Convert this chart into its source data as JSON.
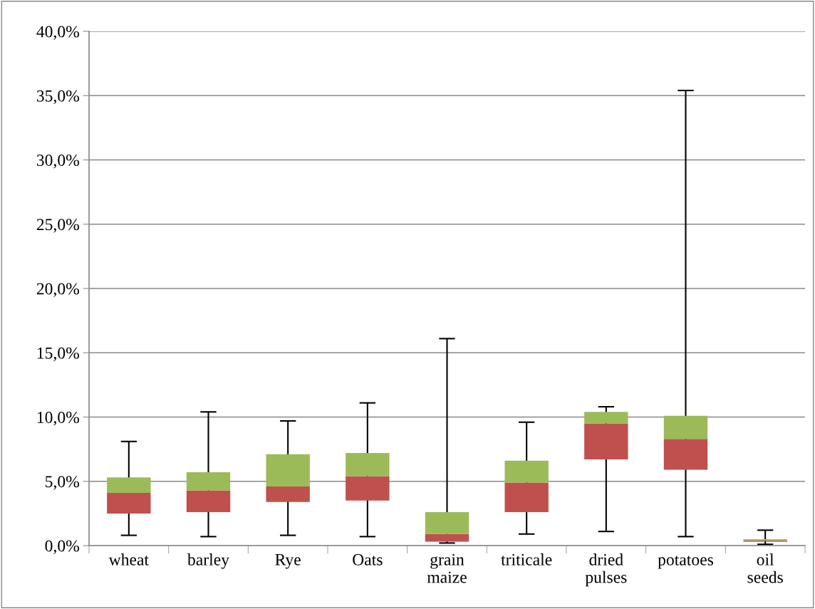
{
  "chart_data": {
    "type": "box",
    "categories": [
      "wheat",
      "barley",
      "Rye",
      "Oats",
      "grain maize",
      "triticale",
      "dried pulses",
      "potatoes",
      "oil seeds"
    ],
    "series": [
      {
        "color": "#9bbb59",
        "colors": [
          "#c0504d",
          "#c0504d",
          "#c0504d",
          "#c0504d",
          "#c0504d",
          "#c0504d",
          "#c0504d",
          "#c0504d",
          "#c0504d"
        ],
        "boxes": [
          {
            "low": 0.8,
            "q1": 2.5,
            "median": 4.1,
            "q3": 5.3,
            "high": 8.1
          },
          {
            "low": 0.7,
            "q1": 2.6,
            "median": 4.3,
            "q3": 5.7,
            "high": 10.4
          },
          {
            "low": 0.8,
            "q1": 3.4,
            "median": 4.6,
            "q3": 7.1,
            "high": 9.7
          },
          {
            "low": 0.7,
            "q1": 3.5,
            "median": 5.4,
            "q3": 7.2,
            "high": 11.1
          },
          {
            "low": 0.2,
            "q1": 0.3,
            "median": 0.9,
            "q3": 2.6,
            "high": 16.1
          },
          {
            "low": 0.9,
            "q1": 2.6,
            "median": 4.9,
            "q3": 6.6,
            "high": 9.6
          },
          {
            "low": 1.1,
            "q1": 6.7,
            "median": 9.5,
            "q3": 10.4,
            "high": 10.8
          },
          {
            "low": 0.7,
            "q1": 5.9,
            "median": 8.3,
            "q3": 10.1,
            "high": 35.4
          },
          {
            "low": 0.1,
            "q1": 0.3,
            "median": 0.4,
            "q3": 0.5,
            "high": 1.2
          }
        ]
      }
    ],
    "ylim": [
      0,
      40
    ],
    "yticks": [
      {
        "value": 0,
        "label": "0,0%"
      },
      {
        "value": 5,
        "label": "5,0%"
      },
      {
        "value": 10,
        "label": "10,0%"
      },
      {
        "value": 15,
        "label": "15,0%"
      },
      {
        "value": 20,
        "label": "20,0%"
      },
      {
        "value": 25,
        "label": "25,0%"
      },
      {
        "value": 30,
        "label": "30,0%"
      },
      {
        "value": 35,
        "label": "35,0%"
      },
      {
        "value": 40,
        "label": "40,0%"
      }
    ],
    "grid": "y"
  }
}
